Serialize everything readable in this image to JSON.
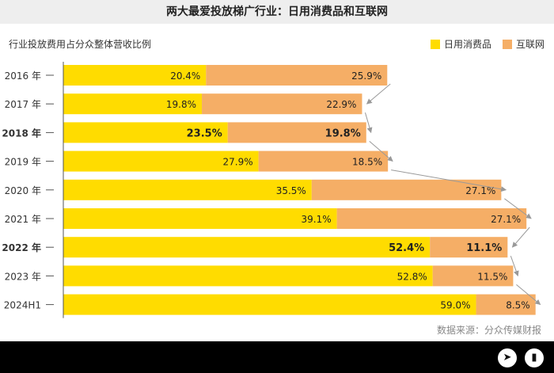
{
  "chart_data": {
    "type": "bar",
    "stacked": true,
    "orientation": "horizontal",
    "title": "两大最爱投放梯广行业：日用消费品和互联网",
    "subtitle": "行业投放费用占分众整体营收比例",
    "source": "数据来源：分众传媒财报",
    "categories": [
      "2016 年",
      "2017 年",
      "2018 年",
      "2019 年",
      "2020 年",
      "2021 年",
      "2022 年",
      "2023 年",
      "2024H1"
    ],
    "bold_categories": [
      "2018 年",
      "2022 年"
    ],
    "series": [
      {
        "name": "日用消费品",
        "color": "#FFDC00",
        "values": [
          20.4,
          19.8,
          23.5,
          27.9,
          35.5,
          39.1,
          52.4,
          52.8,
          59.0
        ],
        "labels": [
          "20.4%",
          "19.8%",
          "23.5%",
          "27.9%",
          "35.5%",
          "39.1%",
          "52.4%",
          "52.8%",
          "59.0%"
        ]
      },
      {
        "name": "互联网",
        "color": "#F5AE66",
        "values": [
          25.9,
          22.9,
          19.8,
          18.5,
          27.1,
          27.1,
          11.1,
          11.5,
          8.5
        ],
        "labels": [
          "25.9%",
          "22.9%",
          "19.8%",
          "18.5%",
          "27.1%",
          "27.1%",
          "11.1%",
          "11.5%",
          "8.5%"
        ]
      }
    ],
    "legend_position": "top-right",
    "grid": false,
    "arrows_between_years": true
  }
}
